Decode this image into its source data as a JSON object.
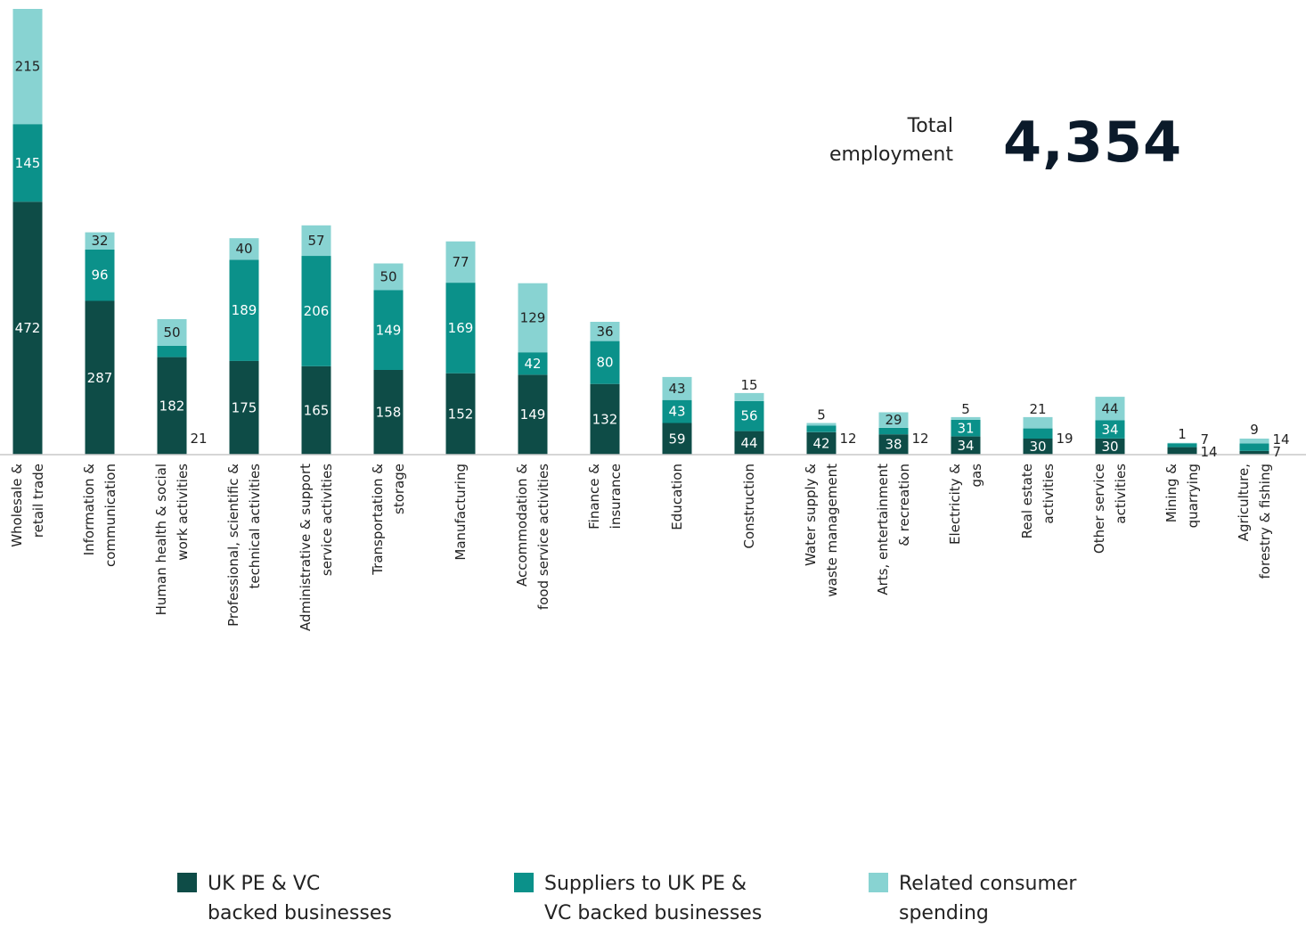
{
  "total": {
    "label_line1": "Total",
    "label_line2": "employment",
    "value": "4,354"
  },
  "colors": {
    "direct": "#0e4c47",
    "indirect": "#0b918a",
    "induced": "#88d3d2",
    "axis": "#c8c8c8"
  },
  "legend": [
    {
      "line1": "UK PE & VC",
      "line2": "backed businesses",
      "color": "#0e4c47"
    },
    {
      "line1": "Suppliers to UK PE &",
      "line2": "VC backed businesses",
      "color": "#0b918a"
    },
    {
      "line1": "Related consumer",
      "line2": "spending",
      "color": "#88d3d2"
    }
  ],
  "chart_data": {
    "type": "bar",
    "stacked": true,
    "categories": [
      [
        "Wholesale &",
        "retail trade"
      ],
      [
        "Information &",
        "communication"
      ],
      [
        "Human health & social",
        "work activities"
      ],
      [
        "Professional, scientific &",
        "technical activities"
      ],
      [
        "Administrative & support",
        "service activities"
      ],
      [
        "Transportation &",
        "storage"
      ],
      [
        "Manufacturing"
      ],
      [
        "Accommodation &",
        "food service activities"
      ],
      [
        "Finance &",
        "insurance"
      ],
      [
        "Education"
      ],
      [
        "Construction"
      ],
      [
        "Water supply &",
        "waste management"
      ],
      [
        "Arts, entertainment",
        "& recreation"
      ],
      [
        "Electricity &",
        "gas"
      ],
      [
        "Real estate",
        "activities"
      ],
      [
        "Other service",
        "activities"
      ],
      [
        "Mining &",
        "quarrying"
      ],
      [
        "Agriculture,",
        "forestry & fishing"
      ]
    ],
    "series": [
      {
        "name": "UK PE & VC backed businesses",
        "values": [
          472,
          287,
          182,
          175,
          165,
          158,
          152,
          149,
          132,
          59,
          44,
          42,
          38,
          34,
          30,
          30,
          14,
          7
        ]
      },
      {
        "name": "Suppliers to UK PE & VC backed businesses",
        "values": [
          145,
          96,
          21,
          189,
          206,
          149,
          169,
          42,
          80,
          43,
          56,
          12,
          12,
          31,
          19,
          34,
          7,
          14
        ]
      },
      {
        "name": "Related consumer spending",
        "values": [
          215,
          32,
          50,
          40,
          57,
          50,
          77,
          129,
          36,
          43,
          15,
          5,
          29,
          5,
          21,
          44,
          1,
          9
        ]
      }
    ],
    "ylim": [
      0,
      832
    ],
    "grid": false,
    "legend_position": "bottom"
  }
}
